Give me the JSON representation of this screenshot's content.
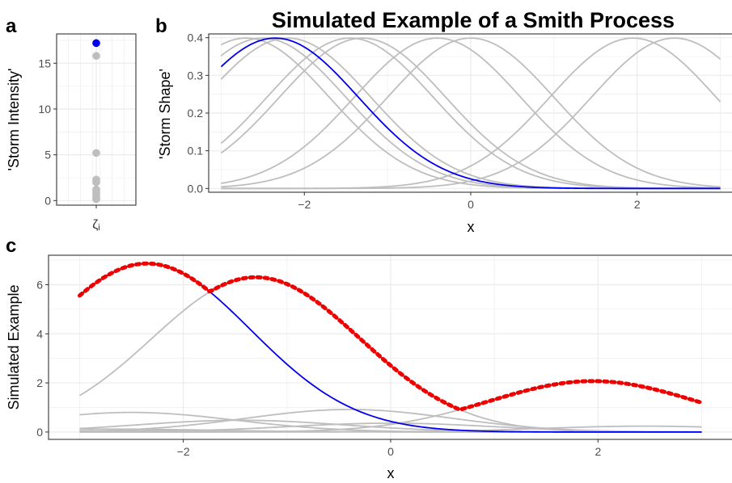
{
  "figure": {
    "title": "Simulated Example of a Smith Process",
    "colors": {
      "grey": "#bebebe",
      "blue": "#0000ee",
      "red": "#ee0000",
      "grid": "#ebebeb",
      "border": "#333333"
    }
  },
  "chart_data": [
    {
      "panel": "a",
      "type": "scatter",
      "ylabel": "'Storm Intensity'",
      "x_tick_label": "ζi",
      "ylim": [
        -0.5,
        18.2
      ],
      "yticks": [
        0,
        5,
        10,
        15
      ],
      "points": [
        {
          "y": 17.2,
          "color": "blue"
        },
        {
          "y": 15.8,
          "color": "grey"
        },
        {
          "y": 5.2,
          "color": "grey"
        },
        {
          "y": 2.3,
          "color": "grey"
        },
        {
          "y": 2.0,
          "color": "grey"
        },
        {
          "y": 1.2,
          "color": "grey"
        },
        {
          "y": 0.9,
          "color": "grey"
        },
        {
          "y": 0.6,
          "color": "grey"
        },
        {
          "y": 0.3,
          "color": "grey"
        },
        {
          "y": 0.15,
          "color": "grey"
        }
      ]
    },
    {
      "panel": "b",
      "type": "line",
      "xlabel": "x",
      "ylabel": "'Storm Shape'",
      "xlim": [
        -3.15,
        3.15
      ],
      "ylim": [
        -0.01,
        0.41
      ],
      "xticks": [
        -2,
        0,
        2
      ],
      "yticks": [
        0.0,
        0.1,
        0.2,
        0.3,
        0.4
      ],
      "x_range": [
        -3,
        3
      ],
      "curve": "normal density, sd = 1",
      "curves": [
        {
          "center": -2.35,
          "color": "blue"
        },
        {
          "center": -2.7,
          "color": "grey"
        },
        {
          "center": -2.5,
          "color": "grey"
        },
        {
          "center": -2.2,
          "color": "grey"
        },
        {
          "center": -1.45,
          "color": "grey"
        },
        {
          "center": -1.3,
          "color": "grey"
        },
        {
          "center": -0.4,
          "color": "grey"
        },
        {
          "center": 0.0,
          "color": "grey"
        },
        {
          "center": 1.95,
          "color": "grey"
        },
        {
          "center": 2.45,
          "color": "grey"
        }
      ]
    },
    {
      "panel": "c",
      "type": "line",
      "xlabel": "x",
      "ylabel": "Simulated Example",
      "xlim": [
        -3.3,
        3.3
      ],
      "ylim": [
        -0.3,
        7.2
      ],
      "xticks": [
        -2,
        0,
        2
      ],
      "yticks": [
        0,
        2,
        4,
        6
      ],
      "x_range": [
        -3,
        3
      ],
      "curve": "intensity × normal density, sd = 1",
      "storms": [
        {
          "center": -2.35,
          "intensity": 17.2,
          "color": "blue"
        },
        {
          "center": -1.3,
          "intensity": 15.8,
          "color": "grey"
        },
        {
          "center": 1.95,
          "intensity": 5.2,
          "color": "grey"
        },
        {
          "center": -0.4,
          "intensity": 2.3,
          "color": "grey"
        },
        {
          "center": -2.5,
          "intensity": 2.0,
          "color": "grey"
        },
        {
          "center": -1.45,
          "intensity": 1.2,
          "color": "grey"
        },
        {
          "center": 0.0,
          "intensity": 0.9,
          "color": "grey"
        },
        {
          "center": 2.45,
          "intensity": 0.6,
          "color": "grey"
        },
        {
          "center": -2.7,
          "intensity": 0.3,
          "color": "grey"
        },
        {
          "center": -2.2,
          "intensity": 0.15,
          "color": "grey"
        }
      ],
      "max_envelope": {
        "color": "red",
        "style": "dotted"
      }
    }
  ]
}
